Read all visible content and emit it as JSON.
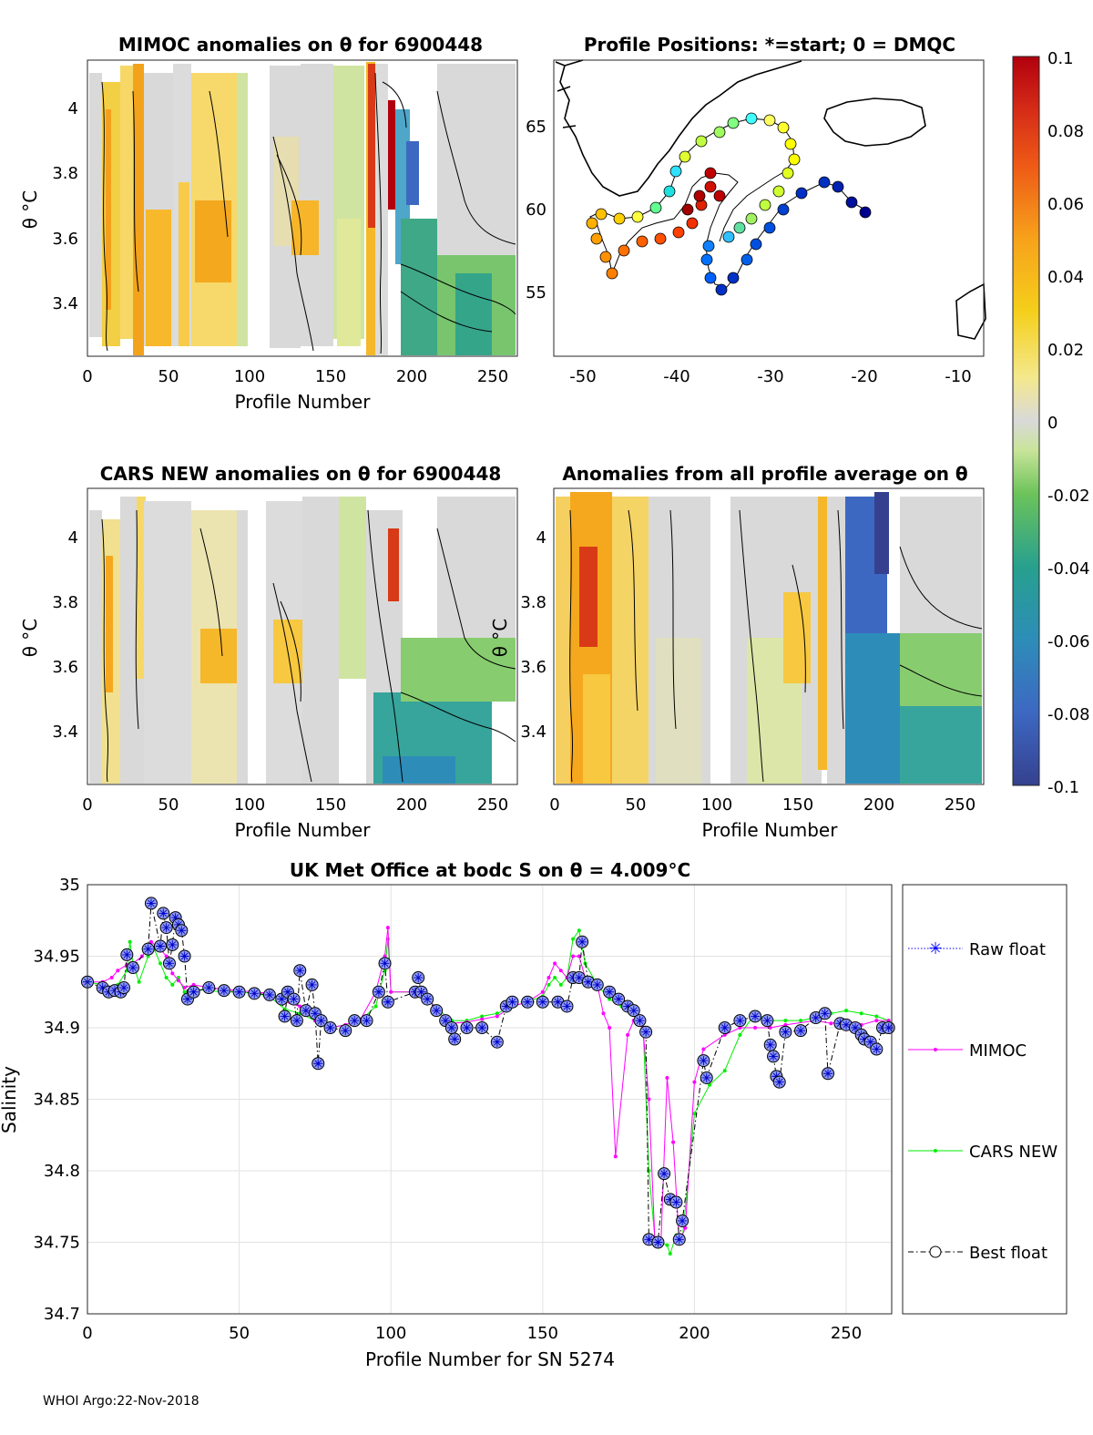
{
  "panels": {
    "mimoc": {
      "title": "MIMOC anomalies on θ  for 6900448",
      "xlabel": "Profile Number",
      "ylabel": "θ °C",
      "xticks": [
        "0",
        "50",
        "100",
        "150",
        "200",
        "250"
      ],
      "yticks": [
        "4",
        "3.8",
        "3.6",
        "3.4"
      ]
    },
    "map": {
      "title": "Profile Positions: *=start; 0 = DMQC",
      "xticks": [
        "-50",
        "-40",
        "-30",
        "-20",
        "-10"
      ],
      "yticks": [
        "65",
        "60",
        "55"
      ]
    },
    "cars": {
      "title": "CARS NEW anomalies on θ for 6900448",
      "xlabel": "Profile Number",
      "ylabel": "θ °C",
      "xticks": [
        "0",
        "50",
        "100",
        "150",
        "200",
        "250"
      ],
      "yticks": [
        "4",
        "3.8",
        "3.6",
        "3.4"
      ]
    },
    "avg": {
      "title": "Anomalies from all profile average on θ",
      "xlabel": "Profile Number",
      "ylabel": "θ °C",
      "xticks": [
        "0",
        "50",
        "100",
        "150",
        "200",
        "250"
      ],
      "yticks": [
        "4",
        "3.8",
        "3.6",
        "3.4"
      ]
    }
  },
  "colorbar": {
    "ticks": [
      "0.1",
      "0.08",
      "0.06",
      "0.04",
      "0.02",
      "0",
      "-0.02",
      "-0.04",
      "-0.06",
      "-0.08",
      "-0.1"
    ]
  },
  "chart_data": {
    "type": "line",
    "title": "UK Met Office at bodc S on θ = 4.009°C",
    "xlabel": "Profile Number for SN 5274",
    "ylabel": "Salinity",
    "xlim": [
      0,
      265
    ],
    "ylim": [
      34.7,
      35.0
    ],
    "xticks": [
      "0",
      "50",
      "100",
      "150",
      "200",
      "250"
    ],
    "yticks": [
      "35",
      "34.95",
      "34.9",
      "34.85",
      "34.8",
      "34.75",
      "34.7"
    ],
    "grid": true,
    "legend": [
      "Raw float",
      "MIMOC",
      "CARS NEW",
      "Best float"
    ],
    "series": [
      {
        "name": "Best float",
        "color": "#000000",
        "points": [
          [
            0,
            34.932
          ],
          [
            5,
            34.928
          ],
          [
            7,
            34.925
          ],
          [
            9,
            34.926
          ],
          [
            11,
            34.925
          ],
          [
            12,
            34.928
          ],
          [
            13,
            34.951
          ],
          [
            15,
            34.942
          ],
          [
            20,
            34.955
          ],
          [
            21,
            34.987
          ],
          [
            24,
            34.957
          ],
          [
            25,
            34.98
          ],
          [
            26,
            34.97
          ],
          [
            27,
            34.945
          ],
          [
            28,
            34.958
          ],
          [
            29,
            34.977
          ],
          [
            30,
            34.972
          ],
          [
            31,
            34.968
          ],
          [
            32,
            34.95
          ],
          [
            33,
            34.92
          ],
          [
            35,
            34.925
          ],
          [
            40,
            34.928
          ],
          [
            45,
            34.926
          ],
          [
            50,
            34.925
          ],
          [
            55,
            34.924
          ],
          [
            60,
            34.923
          ],
          [
            64,
            34.92
          ],
          [
            65,
            34.908
          ],
          [
            66,
            34.925
          ],
          [
            68,
            34.92
          ],
          [
            69,
            34.905
          ],
          [
            70,
            34.94
          ],
          [
            72,
            34.912
          ],
          [
            74,
            34.93
          ],
          [
            75,
            34.91
          ],
          [
            76,
            34.875
          ],
          [
            77,
            34.905
          ],
          [
            80,
            34.9
          ],
          [
            85,
            34.898
          ],
          [
            88,
            34.905
          ],
          [
            92,
            34.905
          ],
          [
            96,
            34.925
          ],
          [
            98,
            34.945
          ],
          [
            99,
            34.918
          ],
          [
            108,
            34.925
          ],
          [
            109,
            34.935
          ],
          [
            110,
            34.925
          ],
          [
            112,
            34.92
          ],
          [
            115,
            34.912
          ],
          [
            118,
            34.905
          ],
          [
            120,
            34.9
          ],
          [
            121,
            34.892
          ],
          [
            125,
            34.9
          ],
          [
            130,
            34.9
          ],
          [
            135,
            34.89
          ],
          [
            138,
            34.915
          ],
          [
            140,
            34.918
          ],
          [
            145,
            34.918
          ],
          [
            150,
            34.918
          ],
          [
            155,
            34.918
          ],
          [
            158,
            34.915
          ],
          [
            160,
            34.935
          ],
          [
            162,
            34.935
          ],
          [
            163,
            34.96
          ],
          [
            165,
            34.932
          ],
          [
            168,
            34.93
          ],
          [
            172,
            34.925
          ],
          [
            175,
            34.92
          ],
          [
            178,
            34.915
          ],
          [
            180,
            34.912
          ],
          [
            182,
            34.905
          ],
          [
            184,
            34.897
          ],
          [
            185,
            34.752
          ],
          [
            188,
            34.75
          ],
          [
            190,
            34.798
          ],
          [
            192,
            34.78
          ],
          [
            194,
            34.778
          ],
          [
            195,
            34.752
          ],
          [
            196,
            34.765
          ],
          [
            203,
            34.877
          ],
          [
            204,
            34.865
          ],
          [
            210,
            34.9
          ],
          [
            215,
            34.905
          ],
          [
            220,
            34.908
          ],
          [
            224,
            34.905
          ],
          [
            225,
            34.888
          ],
          [
            226,
            34.88
          ],
          [
            227,
            34.866
          ],
          [
            228,
            34.862
          ],
          [
            230,
            34.897
          ],
          [
            235,
            34.898
          ],
          [
            240,
            34.907
          ],
          [
            243,
            34.91
          ],
          [
            244,
            34.868
          ],
          [
            248,
            34.903
          ],
          [
            250,
            34.902
          ],
          [
            253,
            34.9
          ],
          [
            255,
            34.895
          ],
          [
            256,
            34.892
          ],
          [
            258,
            34.89
          ],
          [
            260,
            34.885
          ],
          [
            262,
            34.9
          ],
          [
            264,
            34.9
          ]
        ]
      },
      {
        "name": "MIMOC",
        "color": "#ff00ff",
        "points": [
          [
            0,
            34.932
          ],
          [
            5,
            34.932
          ],
          [
            8,
            34.935
          ],
          [
            10,
            34.94
          ],
          [
            13,
            34.944
          ],
          [
            15,
            34.945
          ],
          [
            18,
            34.95
          ],
          [
            21,
            34.96
          ],
          [
            24,
            34.955
          ],
          [
            26,
            34.95
          ],
          [
            28,
            34.938
          ],
          [
            30,
            34.933
          ],
          [
            32,
            34.928
          ],
          [
            35,
            34.93
          ],
          [
            40,
            34.928
          ],
          [
            45,
            34.927
          ],
          [
            50,
            34.926
          ],
          [
            55,
            34.925
          ],
          [
            60,
            34.924
          ],
          [
            65,
            34.918
          ],
          [
            70,
            34.915
          ],
          [
            75,
            34.905
          ],
          [
            80,
            34.9
          ],
          [
            85,
            34.902
          ],
          [
            90,
            34.906
          ],
          [
            95,
            34.925
          ],
          [
            98,
            34.95
          ],
          [
            99,
            34.97
          ],
          [
            100,
            34.925
          ],
          [
            108,
            34.925
          ],
          [
            110,
            34.928
          ],
          [
            115,
            34.912
          ],
          [
            120,
            34.903
          ],
          [
            125,
            34.904
          ],
          [
            130,
            34.906
          ],
          [
            135,
            34.908
          ],
          [
            140,
            34.915
          ],
          [
            145,
            34.918
          ],
          [
            150,
            34.925
          ],
          [
            152,
            34.935
          ],
          [
            154,
            34.945
          ],
          [
            156,
            34.94
          ],
          [
            158,
            34.935
          ],
          [
            160,
            34.95
          ],
          [
            162,
            34.95
          ],
          [
            164,
            34.935
          ],
          [
            168,
            34.93
          ],
          [
            170,
            34.91
          ],
          [
            172,
            34.9
          ],
          [
            174,
            34.81
          ],
          [
            178,
            34.895
          ],
          [
            180,
            34.905
          ],
          [
            183,
            34.9
          ],
          [
            185,
            34.85
          ],
          [
            187,
            34.75
          ],
          [
            189,
            34.752
          ],
          [
            191,
            34.865
          ],
          [
            193,
            34.82
          ],
          [
            195,
            34.75
          ],
          [
            197,
            34.76
          ],
          [
            200,
            34.862
          ],
          [
            203,
            34.885
          ],
          [
            210,
            34.895
          ],
          [
            215,
            34.9
          ],
          [
            220,
            34.9
          ],
          [
            225,
            34.9
          ],
          [
            230,
            34.902
          ],
          [
            240,
            34.905
          ],
          [
            245,
            34.903
          ],
          [
            250,
            34.905
          ],
          [
            255,
            34.902
          ],
          [
            260,
            34.905
          ],
          [
            264,
            34.905
          ]
        ]
      },
      {
        "name": "CARS NEW",
        "color": "#00ee00",
        "points": [
          [
            0,
            34.932
          ],
          [
            5,
            34.93
          ],
          [
            8,
            34.928
          ],
          [
            10,
            34.93
          ],
          [
            13,
            34.94
          ],
          [
            14,
            34.96
          ],
          [
            15,
            34.945
          ],
          [
            17,
            34.932
          ],
          [
            20,
            34.95
          ],
          [
            22,
            34.955
          ],
          [
            24,
            34.945
          ],
          [
            26,
            34.935
          ],
          [
            28,
            34.93
          ],
          [
            30,
            34.935
          ],
          [
            32,
            34.925
          ],
          [
            35,
            34.927
          ],
          [
            40,
            34.926
          ],
          [
            45,
            34.925
          ],
          [
            50,
            34.925
          ],
          [
            55,
            34.924
          ],
          [
            60,
            34.922
          ],
          [
            65,
            34.913
          ],
          [
            70,
            34.91
          ],
          [
            75,
            34.905
          ],
          [
            80,
            34.9
          ],
          [
            85,
            34.902
          ],
          [
            90,
            34.905
          ],
          [
            95,
            34.915
          ],
          [
            98,
            34.94
          ],
          [
            99,
            34.962
          ],
          [
            100,
            34.925
          ],
          [
            108,
            34.925
          ],
          [
            110,
            34.922
          ],
          [
            115,
            34.915
          ],
          [
            118,
            34.908
          ],
          [
            120,
            34.905
          ],
          [
            125,
            34.905
          ],
          [
            130,
            34.908
          ],
          [
            135,
            34.91
          ],
          [
            140,
            34.915
          ],
          [
            145,
            34.918
          ],
          [
            150,
            34.922
          ],
          [
            152,
            34.93
          ],
          [
            154,
            34.935
          ],
          [
            156,
            34.93
          ],
          [
            158,
            34.935
          ],
          [
            160,
            34.962
          ],
          [
            162,
            34.968
          ],
          [
            164,
            34.945
          ],
          [
            168,
            34.93
          ],
          [
            172,
            34.92
          ],
          [
            176,
            34.915
          ],
          [
            180,
            34.91
          ],
          [
            183,
            34.905
          ],
          [
            185,
            34.8
          ],
          [
            187,
            34.752
          ],
          [
            189,
            34.75
          ],
          [
            191,
            34.748
          ],
          [
            192,
            34.742
          ],
          [
            194,
            34.755
          ],
          [
            196,
            34.752
          ],
          [
            200,
            34.84
          ],
          [
            205,
            34.86
          ],
          [
            210,
            34.87
          ],
          [
            215,
            34.895
          ],
          [
            220,
            34.91
          ],
          [
            225,
            34.905
          ],
          [
            230,
            34.905
          ],
          [
            235,
            34.905
          ],
          [
            240,
            34.907
          ],
          [
            245,
            34.91
          ],
          [
            250,
            34.912
          ],
          [
            255,
            34.91
          ],
          [
            260,
            34.908
          ],
          [
            264,
            34.905
          ]
        ]
      }
    ]
  },
  "footer": "WHOI Argo:22-Nov-2018"
}
